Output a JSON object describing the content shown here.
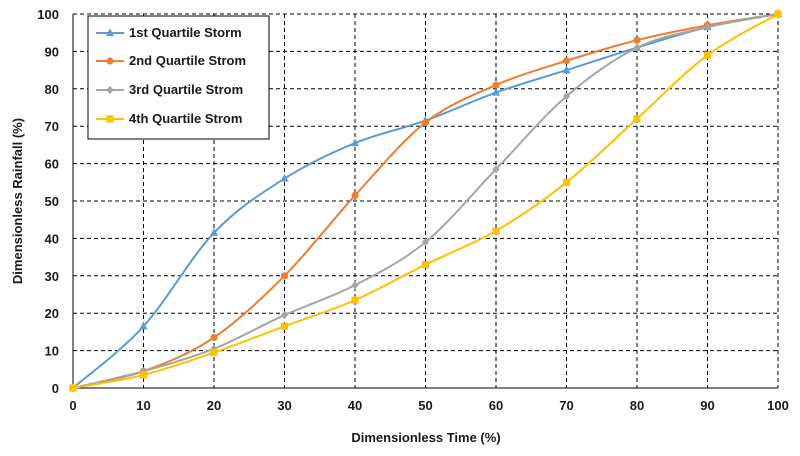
{
  "chart_data": {
    "type": "line",
    "title": "",
    "xlabel": "Dimensionless Time (%)",
    "ylabel": "Dimensionless Rainfall (%)",
    "xlim": [
      0,
      100
    ],
    "ylim": [
      0,
      100
    ],
    "x_ticks": [
      0,
      10,
      20,
      30,
      40,
      50,
      60,
      70,
      80,
      90,
      100
    ],
    "y_ticks": [
      0,
      10,
      20,
      30,
      40,
      50,
      60,
      70,
      80,
      90,
      100
    ],
    "grid": true,
    "legend_position": "top-left",
    "x": [
      0,
      10,
      20,
      30,
      40,
      50,
      60,
      70,
      80,
      90,
      100
    ],
    "series": [
      {
        "name": "1st Quartile Storm",
        "color": "#5B9BD5",
        "marker": "triangle",
        "values": [
          0,
          16.5,
          41.5,
          56,
          65.5,
          71.5,
          79,
          85,
          91,
          96.5,
          100
        ]
      },
      {
        "name": "2nd Quartile Strom",
        "color": "#ED7D31",
        "marker": "circle",
        "values": [
          0,
          4.5,
          13.5,
          30,
          51.5,
          71,
          81,
          87.5,
          93,
          97,
          100
        ]
      },
      {
        "name": "3rd Quartile Strom",
        "color": "#A5A5A5",
        "marker": "diamond",
        "values": [
          0,
          4.5,
          10.5,
          19.5,
          27.5,
          39,
          58.5,
          78,
          91,
          96.5,
          100
        ]
      },
      {
        "name": "4th Quartile Strom",
        "color": "#FFC000",
        "marker": "square",
        "values": [
          0,
          3.5,
          9.5,
          16.5,
          23.5,
          33,
          42,
          55,
          72,
          89,
          100
        ]
      }
    ]
  }
}
